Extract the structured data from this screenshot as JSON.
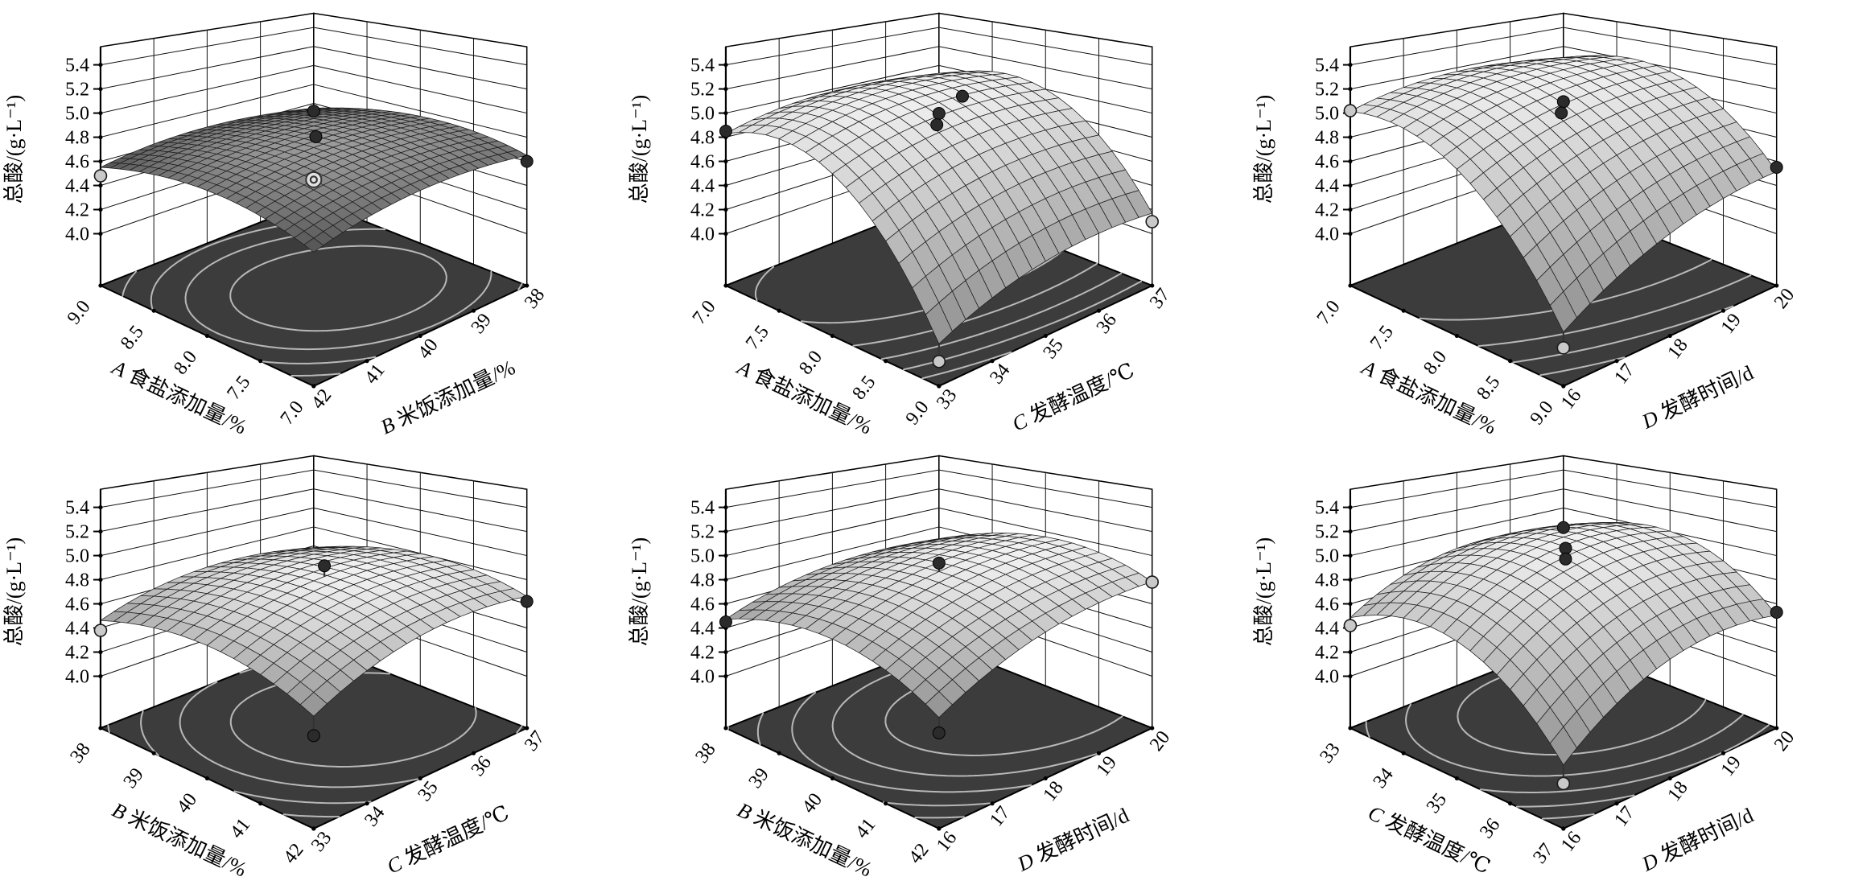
{
  "styles": {
    "background": "#ffffff",
    "floor_fill": "#3c3c3c",
    "contour_stroke": "#b8b8b8",
    "frame_stroke": "#000000",
    "grid_stroke": "#111111",
    "axis_stroke": "#000000",
    "stem_stroke": "#333333",
    "mesh_stroke": "#1e1e1e",
    "wall_fill": "#ffffff",
    "point_dark_fill": "#2b2b2b",
    "point_light_fill": "#c9c9c9",
    "point_ring_fill": "#e2e2e2",
    "point_stroke": "#000000"
  },
  "chart_data": [
    {
      "type": "surface3d",
      "id": "A-B",
      "z_axis": {
        "label": "总酸/(g·L⁻¹)",
        "ticks": [
          "4.0",
          "4.2",
          "4.4",
          "4.6",
          "4.8",
          "5.0",
          "5.2",
          "5.4"
        ],
        "range": [
          4.0,
          5.4
        ]
      },
      "x_axis": {
        "factor": "A",
        "name": "食盐添加量/%",
        "ticks": [
          "9.0",
          "8.5",
          "8.0",
          "7.5",
          "7.0"
        ]
      },
      "y_axis": {
        "factor": "B",
        "name": "米饭添加量/%",
        "ticks": [
          "42",
          "41",
          "40",
          "39",
          "38"
        ]
      },
      "surface": {
        "peak_z": 4.8,
        "peak_u": 0.5,
        "peak_v": 0.5,
        "curv_u": 0.6,
        "curv_v": 0.4,
        "twist": 0.1,
        "mesh_n": 22,
        "shade_lo": "#525252",
        "shade_hi": "#9b9b9b"
      },
      "contour_levels": 4,
      "points": [
        {
          "u": 0.0,
          "v": 0.0,
          "z": 4.48,
          "style": "light",
          "stem": false
        },
        {
          "u": 0.5,
          "v": 0.5,
          "z": 5.08,
          "style": "dark",
          "stem": false
        },
        {
          "u": 0.52,
          "v": 0.49,
          "z": 4.88,
          "style": "dark",
          "stem": false
        },
        {
          "u": 0.5,
          "v": 0.5,
          "z": 4.5,
          "style": "ring",
          "stem": true
        },
        {
          "u": 1.0,
          "v": 1.0,
          "z": 4.6,
          "style": "dark",
          "stem": false
        }
      ]
    },
    {
      "type": "surface3d",
      "id": "A-C",
      "z_axis": {
        "label": "总酸/(g·L⁻¹)",
        "ticks": [
          "4.0",
          "4.2",
          "4.4",
          "4.6",
          "4.8",
          "5.0",
          "5.2",
          "5.4"
        ],
        "range": [
          4.0,
          5.4
        ]
      },
      "x_axis": {
        "factor": "A",
        "name": "食盐添加量/%",
        "ticks": [
          "7.0",
          "7.5",
          "8.0",
          "8.5",
          "9.0"
        ]
      },
      "y_axis": {
        "factor": "C",
        "name": "发酵温度/℃",
        "ticks": [
          "33",
          "34",
          "35",
          "36",
          "37"
        ]
      },
      "surface": {
        "peak_z": 5.1,
        "peak_u": 0.25,
        "peak_v": 0.55,
        "curv_u": 1.9,
        "curv_v": 0.5,
        "twist": 0.24,
        "mesh_n": 16,
        "shade_lo": "#8e8e8e",
        "shade_hi": "#f1f1f1"
      },
      "contour_levels": 5,
      "points": [
        {
          "u": 0.0,
          "v": 0.0,
          "z": 4.85,
          "style": "dark",
          "stem": false
        },
        {
          "u": 0.5,
          "v": 0.5,
          "z": 5.06,
          "style": "dark",
          "stem": true
        },
        {
          "u": 0.51,
          "v": 0.48,
          "z": 4.98,
          "style": "dark",
          "stem": false
        },
        {
          "u": 0.55,
          "v": 0.56,
          "z": 5.2,
          "style": "dark",
          "stem": false
        },
        {
          "u": 1.0,
          "v": 1.0,
          "z": 4.1,
          "style": "light",
          "stem": false
        },
        {
          "u": 1.0,
          "v": 0.0,
          "z": 3.75,
          "style": "light",
          "stem": true
        }
      ]
    },
    {
      "type": "surface3d",
      "id": "A-D",
      "z_axis": {
        "label": "总酸/(g·L⁻¹)",
        "ticks": [
          "4.0",
          "4.2",
          "4.4",
          "4.6",
          "4.8",
          "5.0",
          "5.2",
          "5.4"
        ],
        "range": [
          4.0,
          5.4
        ]
      },
      "x_axis": {
        "factor": "A",
        "name": "食盐添加量/%",
        "ticks": [
          "7.0",
          "7.5",
          "8.0",
          "8.5",
          "9.0"
        ]
      },
      "y_axis": {
        "factor": "D",
        "name": "发酵时间/d",
        "ticks": [
          "16",
          "17",
          "18",
          "19",
          "20"
        ]
      },
      "surface": {
        "peak_z": 5.2,
        "peak_u": 0.15,
        "peak_v": 0.55,
        "curv_u": 1.5,
        "curv_v": 0.5,
        "twist": 0.5,
        "mesh_n": 16,
        "shade_lo": "#8e8e8e",
        "shade_hi": "#f1f1f1"
      },
      "contour_levels": 4,
      "points": [
        {
          "u": 0.0,
          "v": 0.0,
          "z": 5.02,
          "style": "light",
          "stem": false
        },
        {
          "u": 0.5,
          "v": 0.5,
          "z": 5.16,
          "style": "dark",
          "stem": true
        },
        {
          "u": 0.51,
          "v": 0.48,
          "z": 5.08,
          "style": "dark",
          "stem": false
        },
        {
          "u": 1.0,
          "v": 1.0,
          "z": 4.55,
          "style": "dark",
          "stem": false
        },
        {
          "u": 1.0,
          "v": 0.0,
          "z": 3.85,
          "style": "light",
          "stem": true
        }
      ]
    },
    {
      "type": "surface3d",
      "id": "B-C",
      "z_axis": {
        "label": "总酸/(g·L⁻¹)",
        "ticks": [
          "4.0",
          "4.2",
          "4.4",
          "4.6",
          "4.8",
          "5.0",
          "5.2",
          "5.4"
        ],
        "range": [
          4.0,
          5.4
        ]
      },
      "x_axis": {
        "factor": "B",
        "name": "米饭添加量/%",
        "ticks": [
          "38",
          "39",
          "40",
          "41",
          "42"
        ]
      },
      "y_axis": {
        "factor": "C",
        "name": "发酵温度/℃",
        "ticks": [
          "33",
          "34",
          "35",
          "36",
          "37"
        ]
      },
      "surface": {
        "peak_z": 4.82,
        "peak_u": 0.45,
        "peak_v": 0.6,
        "curv_u": 0.7,
        "curv_v": 0.6,
        "twist": 0.15,
        "mesh_n": 16,
        "shade_lo": "#8e8e8e",
        "shade_hi": "#f1f1f1"
      },
      "contour_levels": 4,
      "points": [
        {
          "u": 0.0,
          "v": 0.0,
          "z": 4.38,
          "style": "light",
          "stem": false
        },
        {
          "u": 0.5,
          "v": 0.55,
          "z": 4.95,
          "style": "dark",
          "stem": true
        },
        {
          "u": 1.0,
          "v": 1.0,
          "z": 4.62,
          "style": "dark",
          "stem": false
        },
        {
          "u": 1.0,
          "v": 0.0,
          "z": 4.25,
          "style": "dark",
          "stem": true
        }
      ]
    },
    {
      "type": "surface3d",
      "id": "B-D",
      "z_axis": {
        "label": "总酸/(g·L⁻¹)",
        "ticks": [
          "4.0",
          "4.2",
          "4.4",
          "4.6",
          "4.8",
          "5.0",
          "5.2",
          "5.4"
        ],
        "range": [
          4.0,
          5.4
        ]
      },
      "x_axis": {
        "factor": "B",
        "name": "米饭添加量/%",
        "ticks": [
          "38",
          "39",
          "40",
          "41",
          "42"
        ]
      },
      "y_axis": {
        "factor": "D",
        "name": "发酵时间/d",
        "ticks": [
          "16",
          "17",
          "18",
          "19",
          "20"
        ]
      },
      "surface": {
        "peak_z": 4.9,
        "peak_u": 0.45,
        "peak_v": 0.7,
        "curv_u": 0.9,
        "curv_v": 0.5,
        "twist": 0.2,
        "mesh_n": 16,
        "shade_lo": "#8e8e8e",
        "shade_hi": "#f1f1f1"
      },
      "contour_levels": 5,
      "points": [
        {
          "u": 0.0,
          "v": 0.0,
          "z": 4.45,
          "style": "dark",
          "stem": false
        },
        {
          "u": 0.5,
          "v": 0.5,
          "z": 5.0,
          "style": "dark",
          "stem": true
        },
        {
          "u": 1.0,
          "v": 1.0,
          "z": 4.78,
          "style": "light",
          "stem": false
        },
        {
          "u": 1.0,
          "v": 0.0,
          "z": 4.27,
          "style": "dark",
          "stem": true
        }
      ]
    },
    {
      "type": "surface3d",
      "id": "C-D",
      "z_axis": {
        "label": "总酸/(g·L⁻¹)",
        "ticks": [
          "4.0",
          "4.2",
          "4.4",
          "4.6",
          "4.8",
          "5.0",
          "5.2",
          "5.4"
        ],
        "range": [
          4.0,
          5.4
        ]
      },
      "x_axis": {
        "factor": "C",
        "name": "发酵温度/℃",
        "ticks": [
          "33",
          "34",
          "35",
          "36",
          "37"
        ]
      },
      "y_axis": {
        "factor": "D",
        "name": "发酵时间/d",
        "ticks": [
          "16",
          "17",
          "18",
          "19",
          "20"
        ]
      },
      "surface": {
        "peak_z": 5.05,
        "peak_u": 0.35,
        "peak_v": 0.65,
        "curv_u": 1.5,
        "curv_v": 0.9,
        "twist": 0.2,
        "mesh_n": 16,
        "shade_lo": "#8e8e8e",
        "shade_hi": "#f1f1f1"
      },
      "contour_levels": 5,
      "points": [
        {
          "u": 0.0,
          "v": 0.0,
          "z": 4.42,
          "style": "light",
          "stem": false
        },
        {
          "u": 0.5,
          "v": 0.5,
          "z": 5.3,
          "style": "dark",
          "stem": false
        },
        {
          "u": 0.5,
          "v": 0.51,
          "z": 5.12,
          "style": "dark",
          "stem": true
        },
        {
          "u": 0.52,
          "v": 0.49,
          "z": 5.05,
          "style": "dark",
          "stem": false
        },
        {
          "u": 1.0,
          "v": 1.0,
          "z": 4.53,
          "style": "dark",
          "stem": false
        },
        {
          "u": 1.0,
          "v": 0.0,
          "z": 3.9,
          "style": "light",
          "stem": true
        }
      ]
    }
  ]
}
